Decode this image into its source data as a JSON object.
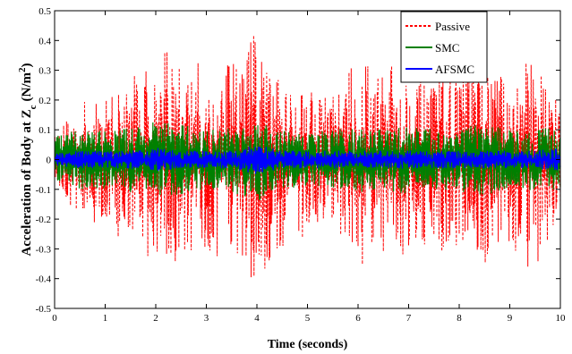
{
  "chart_data": {
    "type": "line",
    "title": "",
    "xlabel": "Time (seconds)",
    "ylabel": "Acceleration of Body at Z",
    "ylabel_sub": "c",
    "ylabel_unit": "(N/m",
    "ylabel_sup": "2",
    "ylabel_close": ")",
    "xlim": [
      0,
      10
    ],
    "ylim": [
      -0.5,
      0.5
    ],
    "x_ticks": [
      0,
      1,
      2,
      3,
      4,
      5,
      6,
      7,
      8,
      9,
      10
    ],
    "x_tick_labels": [
      "0",
      "1",
      "2",
      "3",
      "4",
      "5",
      "6",
      "7",
      "8",
      "9",
      "10"
    ],
    "y_ticks": [
      -0.5,
      -0.4,
      -0.3,
      -0.2,
      -0.1,
      0,
      0.1,
      0.2,
      0.3,
      0.4,
      0.5
    ],
    "y_tick_labels": [
      "-0.5",
      "-0.4",
      "-0.3",
      "-0.2",
      "-0.1",
      "0",
      "0.1",
      "0.2",
      "0.3",
      "0.4",
      "0.5"
    ],
    "grid": false,
    "legend_position": "top-right",
    "series": [
      {
        "name": "Passive",
        "color": "#ff0000",
        "style": "dashed",
        "x": [
          0,
          0.2,
          0.4,
          0.6,
          0.8,
          1.0,
          1.2,
          1.4,
          1.6,
          1.8,
          2.0,
          2.2,
          2.4,
          2.6,
          2.8,
          3.0,
          3.2,
          3.4,
          3.6,
          3.8,
          3.9,
          3.95,
          4.0,
          4.2,
          4.4,
          4.6,
          4.8,
          5.0,
          5.2,
          5.4,
          5.6,
          5.8,
          6.0,
          6.2,
          6.4,
          6.6,
          6.8,
          7.0,
          7.2,
          7.4,
          7.6,
          7.8,
          8.0,
          8.2,
          8.4,
          8.6,
          8.8,
          9.0,
          9.2,
          9.4,
          9.6,
          9.8,
          10.0
        ],
        "y_max": [
          0.1,
          0.13,
          0.18,
          0.2,
          0.19,
          0.22,
          0.24,
          0.26,
          0.3,
          0.32,
          0.35,
          0.37,
          0.33,
          0.3,
          0.36,
          0.28,
          0.3,
          0.33,
          0.35,
          0.38,
          0.49,
          0.47,
          0.4,
          0.33,
          0.29,
          0.25,
          0.26,
          0.3,
          0.25,
          0.22,
          0.24,
          0.3,
          0.33,
          0.34,
          0.28,
          0.32,
          0.35,
          0.3,
          0.28,
          0.23,
          0.28,
          0.32,
          0.3,
          0.35,
          0.33,
          0.3,
          0.28,
          0.3,
          0.32,
          0.34,
          0.33,
          0.26,
          0.23
        ],
        "y_min": [
          -0.06,
          -0.12,
          -0.18,
          -0.2,
          -0.24,
          -0.22,
          -0.27,
          -0.24,
          -0.3,
          -0.33,
          -0.41,
          -0.35,
          -0.38,
          -0.32,
          -0.3,
          -0.3,
          -0.35,
          -0.27,
          -0.33,
          -0.36,
          -0.46,
          -0.42,
          -0.36,
          -0.38,
          -0.32,
          -0.28,
          -0.25,
          -0.3,
          -0.24,
          -0.22,
          -0.25,
          -0.3,
          -0.36,
          -0.36,
          -0.33,
          -0.3,
          -0.35,
          -0.32,
          -0.28,
          -0.3,
          -0.3,
          -0.35,
          -0.3,
          -0.36,
          -0.4,
          -0.33,
          -0.32,
          -0.3,
          -0.36,
          -0.36,
          -0.36,
          -0.3,
          -0.25
        ]
      },
      {
        "name": "SMC",
        "color": "#008000",
        "style": "solid",
        "x": [
          0,
          0.5,
          1.0,
          1.5,
          2.0,
          2.5,
          3.0,
          3.5,
          4.0,
          4.5,
          5.0,
          5.5,
          6.0,
          6.5,
          7.0,
          7.5,
          8.0,
          8.5,
          9.0,
          9.5,
          10.0
        ],
        "y_max": [
          0.08,
          0.1,
          0.1,
          0.11,
          0.13,
          0.12,
          0.1,
          0.11,
          0.14,
          0.1,
          0.09,
          0.1,
          0.11,
          0.1,
          0.12,
          0.1,
          0.11,
          0.12,
          0.1,
          0.11,
          0.1
        ],
        "y_min": [
          -0.07,
          -0.1,
          -0.1,
          -0.11,
          -0.12,
          -0.12,
          -0.1,
          -0.11,
          -0.14,
          -0.1,
          -0.09,
          -0.1,
          -0.11,
          -0.1,
          -0.12,
          -0.1,
          -0.11,
          -0.12,
          -0.1,
          -0.11,
          -0.1
        ]
      },
      {
        "name": "AFSMC",
        "color": "#0000ff",
        "style": "solid",
        "x": [
          0,
          0.5,
          1.0,
          1.5,
          2.0,
          2.5,
          3.0,
          3.5,
          4.0,
          4.5,
          5.0,
          5.5,
          6.0,
          6.5,
          7.0,
          7.5,
          8.0,
          8.5,
          9.0,
          9.5,
          10.0
        ],
        "y_max": [
          0.02,
          0.03,
          0.03,
          0.03,
          0.04,
          0.03,
          0.03,
          0.03,
          0.05,
          0.03,
          0.03,
          0.03,
          0.03,
          0.03,
          0.03,
          0.03,
          0.03,
          0.03,
          0.03,
          0.03,
          0.04
        ],
        "y_min": [
          -0.02,
          -0.03,
          -0.03,
          -0.03,
          -0.04,
          -0.03,
          -0.03,
          -0.03,
          -0.05,
          -0.03,
          -0.03,
          -0.03,
          -0.03,
          -0.03,
          -0.03,
          -0.03,
          -0.03,
          -0.03,
          -0.03,
          -0.03,
          -0.04
        ]
      }
    ]
  }
}
